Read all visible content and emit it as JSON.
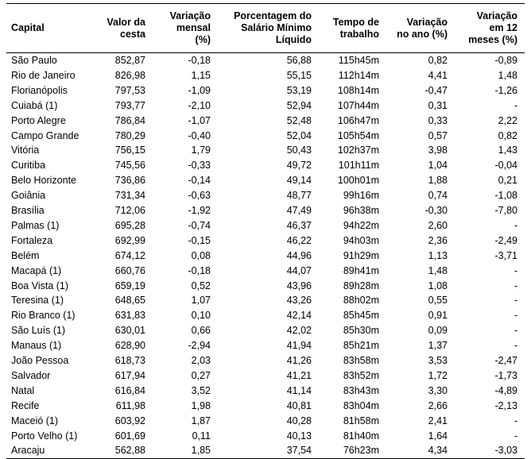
{
  "table": {
    "headers": [
      [
        "Capital"
      ],
      [
        "Valor da",
        "cesta"
      ],
      [
        "Variação",
        "mensal",
        "(%)"
      ],
      [
        "Porcentagem do",
        "Salário Mínimo",
        "Líquido"
      ],
      [
        "Tempo de",
        "trabalho"
      ],
      [
        "Variação",
        "no ano (%)"
      ],
      [
        "Variação",
        "em 12",
        "meses (%)"
      ]
    ],
    "rows": [
      [
        "São Paulo",
        "852,87",
        "-0,18",
        "56,88",
        "115h45m",
        "0,82",
        "-0,89"
      ],
      [
        "Rio de Janeiro",
        "826,98",
        "1,15",
        "55,15",
        "112h14m",
        "4,41",
        "1,48"
      ],
      [
        "Florianópolis",
        "797,53",
        "-1,09",
        "53,19",
        "108h14m",
        "-0,47",
        "-1,26"
      ],
      [
        "Cuiabá (1)",
        "793,77",
        "-2,10",
        "52,94",
        "107h44m",
        "0,31",
        "-"
      ],
      [
        "Porto Alegre",
        "786,84",
        "-1,07",
        "52,48",
        "106h47m",
        "0,33",
        "2,22"
      ],
      [
        "Campo Grande",
        "780,29",
        "-0,40",
        "52,04",
        "105h54m",
        "0,57",
        "0,82"
      ],
      [
        "Vitória",
        "756,15",
        "1,79",
        "50,43",
        "102h37m",
        "3,98",
        "1,43"
      ],
      [
        "Curitiba",
        "745,56",
        "-0,33",
        "49,72",
        "101h11m",
        "1,04",
        "-0,04"
      ],
      [
        "Belo Horizonte",
        "736,86",
        "-0,14",
        "49,14",
        "100h01m",
        "1,88",
        "0,21"
      ],
      [
        "Goiânia",
        "731,34",
        "-0,63",
        "48,77",
        "99h16m",
        "0,74",
        "-1,08"
      ],
      [
        "Brasília",
        "712,06",
        "-1,92",
        "47,49",
        "96h38m",
        "-0,30",
        "-7,80"
      ],
      [
        "Palmas (1)",
        "695,28",
        "-0,74",
        "46,37",
        "94h22m",
        "2,60",
        "-"
      ],
      [
        "Fortaleza",
        "692,99",
        "-0,15",
        "46,22",
        "94h03m",
        "2,36",
        "-2,49"
      ],
      [
        "Belém",
        "674,12",
        "0,08",
        "44,96",
        "91h29m",
        "1,13",
        "-3,71"
      ],
      [
        "Macapá (1)",
        "660,76",
        "-0,18",
        "44,07",
        "89h41m",
        "1,48",
        "-"
      ],
      [
        "Boa Vista (1)",
        "659,19",
        "0,52",
        "43,96",
        "89h28m",
        "1,08",
        "-"
      ],
      [
        "Teresina (1)",
        "648,65",
        "1,07",
        "43,26",
        "88h02m",
        "0,55",
        "-"
      ],
      [
        "Rio Branco (1)",
        "631,83",
        "0,10",
        "42,14",
        "85h45m",
        "0,91",
        "-"
      ],
      [
        "São Luís (1)",
        "630,01",
        "0,66",
        "42,02",
        "85h30m",
        "0,09",
        "-"
      ],
      [
        "Manaus (1)",
        "628,90",
        "-2,94",
        "41,94",
        "85h21m",
        "1,37",
        "-"
      ],
      [
        "João Pessoa",
        "618,73",
        "2,03",
        "41,26",
        "83h58m",
        "3,53",
        "-2,47"
      ],
      [
        "Salvador",
        "617,94",
        "0,27",
        "41,21",
        "83h52m",
        "1,72",
        "-1,73"
      ],
      [
        "Natal",
        "616,84",
        "3,52",
        "41,14",
        "83h43m",
        "3,30",
        "-4,89"
      ],
      [
        "Recife",
        "611,98",
        "1,98",
        "40,81",
        "83h04m",
        "2,66",
        "-2,13"
      ],
      [
        "Maceió (1)",
        "603,92",
        "1,87",
        "40,28",
        "81h58m",
        "2,41",
        "-"
      ],
      [
        "Porto Velho (1)",
        "601,69",
        "0,11",
        "40,13",
        "81h40m",
        "1,64",
        "-"
      ],
      [
        "Aracaju",
        "562,88",
        "1,85",
        "37,54",
        "76h23m",
        "4,34",
        "-3,03"
      ]
    ]
  }
}
